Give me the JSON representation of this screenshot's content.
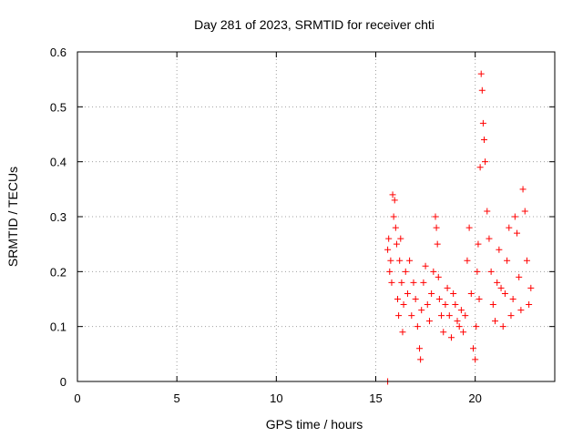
{
  "chart_data": {
    "type": "scatter",
    "title": "Day 281 of 2023, SRMTID for receiver chti",
    "xlabel": "GPS time / hours",
    "ylabel": "SRMTID / TECUs",
    "xlim": [
      0,
      24
    ],
    "ylim": [
      0,
      0.6
    ],
    "xticks": [
      0,
      5,
      10,
      15,
      20
    ],
    "xtick_labels": [
      "0",
      "5",
      "10",
      "15",
      "20"
    ],
    "yticks": [
      0,
      0.1,
      0.2,
      0.3,
      0.4,
      0.5,
      0.6
    ],
    "ytick_labels": [
      "0",
      "0.1",
      "0.2",
      "0.3",
      "0.4",
      "0.5",
      "0.6"
    ],
    "grid": true,
    "marker": "plus",
    "color": "#ff0000",
    "series": [
      {
        "name": "SRMTID",
        "x": [
          15.6,
          15.6,
          15.65,
          15.7,
          15.75,
          15.8,
          15.85,
          15.9,
          15.95,
          16.0,
          16.05,
          16.1,
          16.15,
          16.2,
          16.25,
          16.3,
          16.35,
          16.4,
          16.5,
          16.6,
          16.7,
          16.8,
          16.9,
          17.0,
          17.1,
          17.2,
          17.25,
          17.3,
          17.4,
          17.5,
          17.6,
          17.7,
          17.8,
          17.9,
          18.0,
          18.05,
          18.1,
          18.15,
          18.2,
          18.3,
          18.4,
          18.5,
          18.6,
          18.7,
          18.8,
          18.9,
          19.0,
          19.1,
          19.2,
          19.3,
          19.4,
          19.5,
          19.6,
          19.7,
          19.8,
          19.9,
          20.0,
          20.05,
          20.1,
          20.15,
          20.2,
          20.25,
          20.3,
          20.35,
          20.4,
          20.45,
          20.5,
          20.6,
          20.7,
          20.8,
          20.9,
          21.0,
          21.1,
          21.2,
          21.3,
          21.4,
          21.5,
          21.6,
          21.7,
          21.8,
          21.9,
          22.0,
          22.1,
          22.2,
          22.3,
          22.4,
          22.5,
          22.6,
          22.7,
          22.8
        ],
        "y": [
          0.0,
          0.24,
          0.26,
          0.2,
          0.22,
          0.18,
          0.34,
          0.3,
          0.33,
          0.28,
          0.25,
          0.15,
          0.12,
          0.22,
          0.26,
          0.18,
          0.09,
          0.14,
          0.2,
          0.16,
          0.22,
          0.12,
          0.18,
          0.15,
          0.1,
          0.06,
          0.04,
          0.13,
          0.18,
          0.21,
          0.14,
          0.11,
          0.16,
          0.2,
          0.3,
          0.28,
          0.25,
          0.19,
          0.15,
          0.12,
          0.09,
          0.14,
          0.17,
          0.12,
          0.08,
          0.16,
          0.14,
          0.11,
          0.1,
          0.13,
          0.09,
          0.12,
          0.22,
          0.28,
          0.16,
          0.06,
          0.04,
          0.1,
          0.2,
          0.25,
          0.15,
          0.39,
          0.56,
          0.53,
          0.47,
          0.44,
          0.4,
          0.31,
          0.26,
          0.2,
          0.14,
          0.11,
          0.18,
          0.24,
          0.17,
          0.1,
          0.16,
          0.22,
          0.28,
          0.12,
          0.15,
          0.3,
          0.27,
          0.19,
          0.13,
          0.35,
          0.31,
          0.22,
          0.14,
          0.17
        ]
      }
    ]
  }
}
